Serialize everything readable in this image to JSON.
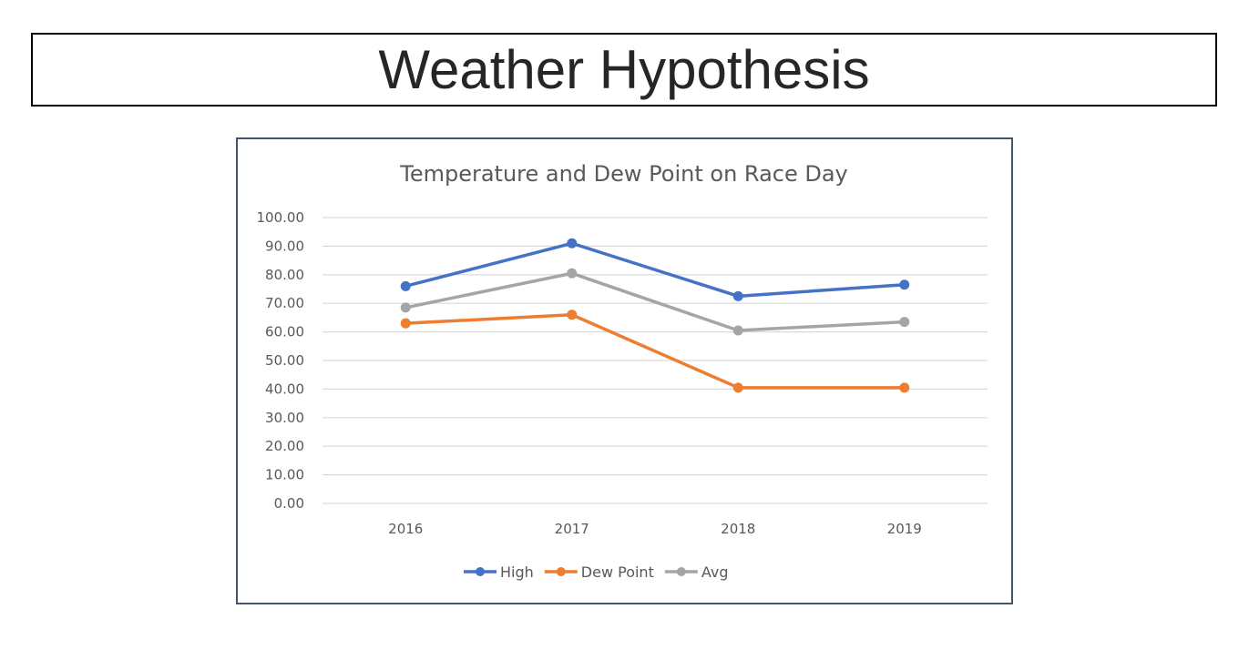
{
  "slide": {
    "title": "Weather Hypothesis"
  },
  "chart_data": {
    "type": "line",
    "title": "Temperature and Dew Point on Race Day",
    "xlabel": "",
    "ylabel": "",
    "categories": [
      "2016",
      "2017",
      "2018",
      "2019"
    ],
    "ylim": [
      0,
      100
    ],
    "yticks": [
      "0.00",
      "10.00",
      "20.00",
      "30.00",
      "40.00",
      "50.00",
      "60.00",
      "70.00",
      "80.00",
      "90.00",
      "100.00"
    ],
    "grid": true,
    "legend_position": "bottom",
    "series": [
      {
        "name": "High",
        "values": [
          76,
          91,
          72.5,
          76.5
        ],
        "color": "#4472c4"
      },
      {
        "name": "Dew Point",
        "values": [
          63,
          66,
          40.5,
          40.5
        ],
        "color": "#ed7d31"
      },
      {
        "name": "Avg",
        "values": [
          68.5,
          80.5,
          60.5,
          63.5
        ],
        "color": "#a5a5a5"
      }
    ]
  }
}
